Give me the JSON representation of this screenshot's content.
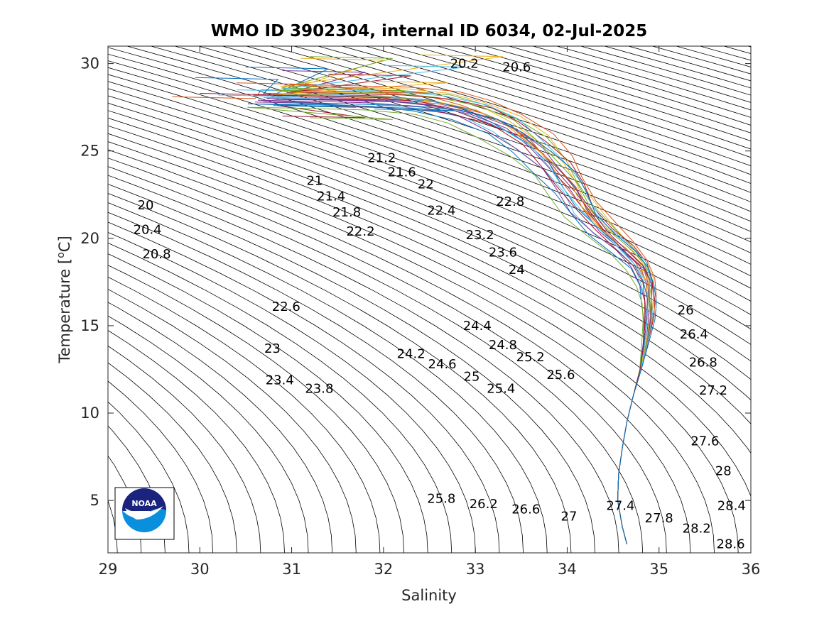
{
  "chart_data": {
    "type": "line",
    "title": "WMO ID 3902304, internal ID 6034, 02-Jul-2025",
    "xlabel": "Salinity",
    "ylabel_main": "Temperature [",
    "ylabel_sup": "o",
    "ylabel_end": "C]",
    "xlim": [
      29,
      36
    ],
    "ylim": [
      2,
      31
    ],
    "xticks": [
      "29",
      "30",
      "31",
      "32",
      "33",
      "34",
      "35",
      "36"
    ],
    "yticks": [
      "5",
      "10",
      "15",
      "20",
      "25",
      "30"
    ],
    "grid": false,
    "legend": "none",
    "colors": [
      "#0072BD",
      "#D95319",
      "#EDB120",
      "#7E2F8E",
      "#77AC30",
      "#4DBEEE",
      "#A2142F"
    ],
    "isopycnal_labels": [
      {
        "text": "20.2",
        "s": 32.88,
        "t": 30.0
      },
      {
        "text": "20.6",
        "s": 33.45,
        "t": 29.8
      },
      {
        "text": "21.2",
        "s": 31.98,
        "t": 24.6
      },
      {
        "text": "21.6",
        "s": 32.2,
        "t": 23.8
      },
      {
        "text": "22",
        "s": 32.46,
        "t": 23.1
      },
      {
        "text": "21",
        "s": 31.25,
        "t": 23.3
      },
      {
        "text": "21.4",
        "s": 31.43,
        "t": 22.4
      },
      {
        "text": "21.8",
        "s": 31.6,
        "t": 21.5
      },
      {
        "text": "22.2",
        "s": 31.75,
        "t": 20.4
      },
      {
        "text": "22.4",
        "s": 32.63,
        "t": 21.6
      },
      {
        "text": "22.8",
        "s": 33.38,
        "t": 22.1
      },
      {
        "text": "20",
        "s": 29.41,
        "t": 21.9
      },
      {
        "text": "20.4",
        "s": 29.43,
        "t": 20.5
      },
      {
        "text": "20.8",
        "s": 29.53,
        "t": 19.1
      },
      {
        "text": "23.2",
        "s": 33.05,
        "t": 20.2
      },
      {
        "text": "23.6",
        "s": 33.3,
        "t": 19.2
      },
      {
        "text": "24",
        "s": 33.45,
        "t": 18.2
      },
      {
        "text": "22.6",
        "s": 30.94,
        "t": 16.1
      },
      {
        "text": "24.4",
        "s": 33.02,
        "t": 15.0
      },
      {
        "text": "24.8",
        "s": 33.3,
        "t": 13.9
      },
      {
        "text": "25.2",
        "s": 33.6,
        "t": 13.2
      },
      {
        "text": "25.6",
        "s": 33.93,
        "t": 12.2
      },
      {
        "text": "23",
        "s": 30.79,
        "t": 13.7
      },
      {
        "text": "24.2",
        "s": 32.3,
        "t": 13.4
      },
      {
        "text": "24.6",
        "s": 32.64,
        "t": 12.8
      },
      {
        "text": "25",
        "s": 32.96,
        "t": 12.1
      },
      {
        "text": "25.4",
        "s": 33.28,
        "t": 11.4
      },
      {
        "text": "23.4",
        "s": 30.87,
        "t": 11.9
      },
      {
        "text": "23.8",
        "s": 31.3,
        "t": 11.4
      },
      {
        "text": "26",
        "s": 35.29,
        "t": 15.9
      },
      {
        "text": "26.4",
        "s": 35.38,
        "t": 14.5
      },
      {
        "text": "26.8",
        "s": 35.48,
        "t": 12.9
      },
      {
        "text": "27.2",
        "s": 35.59,
        "t": 11.3
      },
      {
        "text": "27.6",
        "s": 35.5,
        "t": 8.4
      },
      {
        "text": "28",
        "s": 35.7,
        "t": 6.7
      },
      {
        "text": "28.4",
        "s": 35.79,
        "t": 4.7
      },
      {
        "text": "28.6",
        "s": 35.78,
        "t": 2.5
      },
      {
        "text": "28.2",
        "s": 35.41,
        "t": 3.4
      },
      {
        "text": "27.8",
        "s": 35.0,
        "t": 4.0
      },
      {
        "text": "27.4",
        "s": 34.58,
        "t": 4.7
      },
      {
        "text": "27",
        "s": 34.02,
        "t": 4.1
      },
      {
        "text": "26.6",
        "s": 33.55,
        "t": 4.5
      },
      {
        "text": "26.2",
        "s": 33.09,
        "t": 4.8
      },
      {
        "text": "25.8",
        "s": 32.63,
        "t": 5.1
      }
    ],
    "profile_shape": [
      [
        34.65,
        2.5
      ],
      [
        34.6,
        3.5
      ],
      [
        34.55,
        5
      ],
      [
        34.56,
        6.5
      ],
      [
        34.6,
        8
      ],
      [
        34.65,
        9.5
      ],
      [
        34.72,
        11
      ],
      [
        34.8,
        12.5
      ],
      [
        34.86,
        14
      ],
      [
        34.9,
        15.5
      ],
      [
        34.9,
        16.5
      ],
      [
        34.88,
        17.5
      ],
      [
        34.8,
        18.5
      ],
      [
        34.62,
        19.5
      ],
      [
        34.4,
        20.5
      ],
      [
        34.2,
        21.7
      ],
      [
        34.05,
        23
      ],
      [
        33.88,
        24.2
      ],
      [
        33.65,
        25.4
      ],
      [
        33.35,
        26.5
      ],
      [
        33.0,
        27.3
      ],
      [
        32.6,
        27.8
      ],
      [
        32.1,
        28.05
      ],
      [
        31.4,
        28.15
      ],
      [
        30.8,
        28.2
      ]
    ],
    "series": [
      {
        "top_t": 29.8,
        "s_off": 0.0,
        "t_off": 0.0,
        "s_end": 30.5
      },
      {
        "top_t": 28.1,
        "s_off": -0.1,
        "t_off": 0.3,
        "s_end": 29.7
      },
      {
        "top_t": 30.3,
        "s_off": 0.05,
        "t_off": 0.2,
        "s_end": 31.1
      },
      {
        "top_t": 29.6,
        "s_off": -0.05,
        "t_off": -0.2,
        "s_end": 30.9
      },
      {
        "top_t": 30.4,
        "s_off": 0.1,
        "t_off": 0.4,
        "s_end": 31.2
      },
      {
        "top_t": 28.5,
        "s_off": -0.15,
        "t_off": -0.4,
        "s_end": 30.4
      },
      {
        "top_t": 27.0,
        "s_off": 0.08,
        "t_off": -0.6,
        "s_end": 30.9
      },
      {
        "top_t": 29.2,
        "s_off": -0.12,
        "t_off": 0.1,
        "s_end": 29.95
      },
      {
        "top_t": 28.9,
        "s_off": 0.02,
        "t_off": -0.1,
        "s_end": 30.4
      },
      {
        "top_t": 30.5,
        "s_off": 0.12,
        "t_off": 0.5,
        "s_end": 32.4
      },
      {
        "top_t": 27.8,
        "s_off": -0.2,
        "t_off": -0.3,
        "s_end": 30.6
      },
      {
        "top_t": 28.7,
        "s_off": 0.04,
        "t_off": 0.25,
        "s_end": 31.0
      },
      {
        "top_t": 28.2,
        "s_off": -0.08,
        "t_off": -0.15,
        "s_end": 30.2
      },
      {
        "top_t": 29.4,
        "s_off": 0.15,
        "t_off": 0.15,
        "s_end": 31.4
      },
      {
        "top_t": 27.6,
        "s_off": -0.25,
        "t_off": -0.5,
        "s_end": 30.8
      },
      {
        "top_t": 28.4,
        "s_off": 0.18,
        "t_off": 0.6,
        "s_end": 31.6
      },
      {
        "top_t": 29.0,
        "s_off": -0.03,
        "t_off": 0.05,
        "s_end": 31.8
      },
      {
        "top_t": 28.0,
        "s_off": 0.07,
        "t_off": -0.25,
        "s_end": 31.3
      },
      {
        "top_t": 26.9,
        "s_off": -0.3,
        "t_off": -0.7,
        "s_end": 31.2
      },
      {
        "top_t": 29.9,
        "s_off": 0.09,
        "t_off": 0.35,
        "s_end": 32.0
      },
      {
        "top_t": 28.3,
        "s_off": -0.18,
        "t_off": 0.0,
        "s_end": 30.0
      },
      {
        "top_t": 27.4,
        "s_off": 0.2,
        "t_off": -0.45,
        "s_end": 31.9
      }
    ],
    "logo_text": "NOAA"
  }
}
